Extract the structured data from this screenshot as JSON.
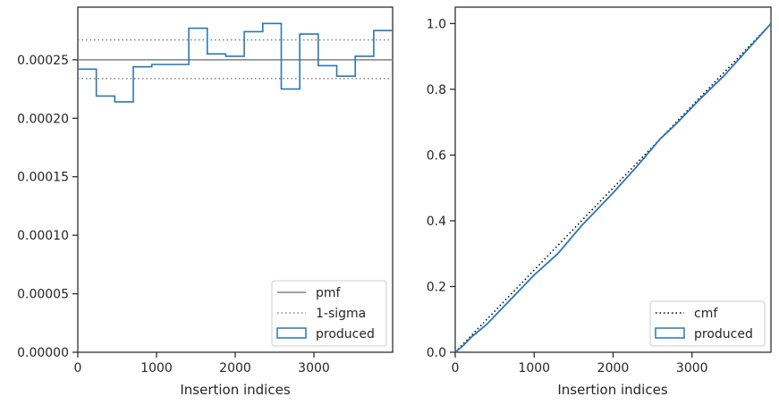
{
  "colors": {
    "produced": "#2878b5",
    "pmf": "#808080",
    "sigma": "#808080",
    "cmf": "#000000",
    "axes": "#262626",
    "legend_border": "#cccccc"
  },
  "chart_data": [
    {
      "type": "line",
      "chart_kind": "step histogram",
      "xlabel": "Insertion indices",
      "ylabel": "",
      "xlim": [
        0,
        4000
      ],
      "ylim": [
        0,
        0.000295
      ],
      "x_ticks": [
        "0",
        "1000",
        "2000",
        "3000"
      ],
      "y_ticks": [
        "0.00000",
        "0.00005",
        "0.00010",
        "0.00015",
        "0.00020",
        "0.00025"
      ],
      "grid": false,
      "legend_position": "bottom-right",
      "legend": [
        "pmf",
        "1-sigma",
        "produced"
      ],
      "pmf": 0.00025,
      "sigma_band": [
        0.000234,
        0.000267
      ],
      "produced_bins": {
        "edges": [
          0,
          235,
          470,
          705,
          940,
          1175,
          1410,
          1645,
          1880,
          2115,
          2350,
          2585,
          2820,
          3055,
          3290,
          3525,
          3760,
          4000
        ],
        "values": [
          0.000242,
          0.000219,
          0.000214,
          0.000244,
          0.000246,
          0.000246,
          0.000277,
          0.000255,
          0.000253,
          0.000274,
          0.000281,
          0.000225,
          0.000272,
          0.000245,
          0.000236,
          0.000253,
          0.000275
        ]
      }
    },
    {
      "type": "line",
      "chart_kind": "cumulative step",
      "xlabel": "Insertion indices",
      "ylabel": "",
      "xlim": [
        0,
        4000
      ],
      "ylim": [
        0,
        1.05
      ],
      "x_ticks": [
        "0",
        "1000",
        "2000",
        "3000"
      ],
      "y_ticks": [
        "0.0",
        "0.2",
        "0.4",
        "0.6",
        "0.8",
        "1.0"
      ],
      "grid": false,
      "legend_position": "bottom-right",
      "legend": [
        "cmf",
        "produced"
      ],
      "cmf": {
        "x": [
          0,
          4000
        ],
        "y": [
          0,
          1
        ]
      },
      "produced": {
        "x": [
          0,
          100,
          200,
          400,
          700,
          1000,
          1300,
          1600,
          2000,
          2300,
          2600,
          2800,
          3100,
          3400,
          3700,
          4000
        ],
        "y": [
          0,
          0.02,
          0.045,
          0.085,
          0.16,
          0.235,
          0.3,
          0.385,
          0.485,
          0.565,
          0.65,
          0.695,
          0.77,
          0.84,
          0.92,
          1.0
        ]
      }
    }
  ]
}
